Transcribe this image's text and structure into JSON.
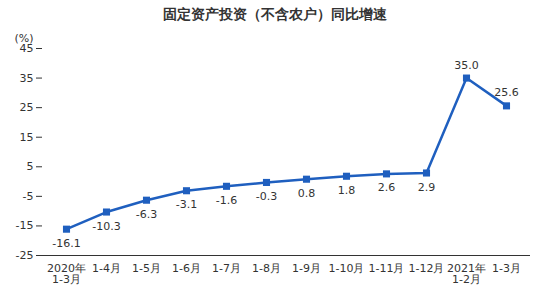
{
  "chart_data": {
    "type": "line",
    "title": "固定资产投资（不含农户）同比增速",
    "y_label": "(%)",
    "categories": [
      "2020年\n1-3月",
      "1-4月",
      "1-5月",
      "1-6月",
      "1-7月",
      "1-8月",
      "1-9月",
      "1-10月",
      "1-11月",
      "1-12月",
      "2021年\n1-2月",
      "1-3月"
    ],
    "values": [
      -16.1,
      -10.3,
      -6.3,
      -3.1,
      -1.6,
      -0.3,
      0.8,
      1.8,
      2.6,
      2.9,
      35.0,
      25.6
    ],
    "value_labels": [
      "-16.1",
      "-10.3",
      "-6.3",
      "-3.1",
      "-1.6",
      "-0.3",
      "0.8",
      "1.8",
      "2.6",
      "2.9",
      "35.0",
      "25.6"
    ],
    "color": "#1f5fbf",
    "marker": "square",
    "line_style": "solid",
    "ylim": [
      -25,
      45
    ],
    "yticks": [
      -25,
      -15,
      -5,
      5,
      15,
      25,
      35,
      45
    ],
    "grid": false,
    "data_labels": true
  }
}
